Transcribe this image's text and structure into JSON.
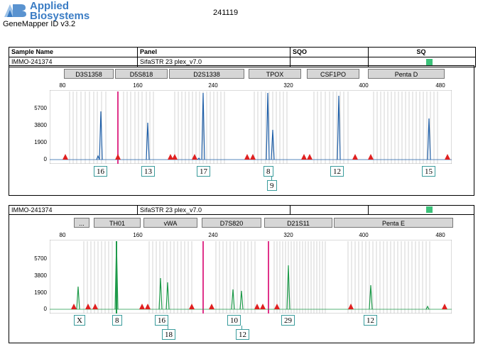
{
  "header": {
    "brand_line1": "Applied",
    "brand_line2": "Biosystems",
    "app_version": "GeneMapper ID v3.2",
    "run_id": "241119"
  },
  "columns": {
    "sample_name": "Sample Name",
    "panel": "Panel",
    "sqo": "SQO",
    "sq": "SQ"
  },
  "colors": {
    "blue": "#1f5fa8",
    "green": "#1e9a4a",
    "pink": "#e0338a",
    "red": "#e02020",
    "sq_ok": "#3cc27a"
  },
  "panels": [
    {
      "sample": "IMMO-241374",
      "panel": "SifaSTR 23 plex_v7.0",
      "dye_color": "#1f5fa8",
      "markers": [
        "D3S1358",
        "D5S818",
        "D2S1338",
        "TPOX",
        "CSF1PO",
        "Penta D"
      ],
      "x_ticks": [
        "80",
        "160",
        "240",
        "320",
        "400",
        "480"
      ],
      "y_ticks": [
        "5700",
        "3800",
        "1900",
        "0"
      ],
      "alleles": [
        "16",
        "13",
        "17",
        "8",
        "9",
        "12",
        "15"
      ]
    },
    {
      "sample": "IMMO-241374",
      "panel": "SifaSTR 23 plex_v7.0",
      "dye_color": "#1e9a4a",
      "markers": [
        "...",
        "TH01",
        "vWA",
        "D7S820",
        "D21S11",
        "Penta E"
      ],
      "x_ticks": [
        "80",
        "160",
        "240",
        "320",
        "400",
        "480"
      ],
      "y_ticks": [
        "5700",
        "3800",
        "1900",
        "0"
      ],
      "alleles": [
        "X",
        "8",
        "16",
        "18",
        "10",
        "12",
        "29",
        "12"
      ]
    }
  ]
}
